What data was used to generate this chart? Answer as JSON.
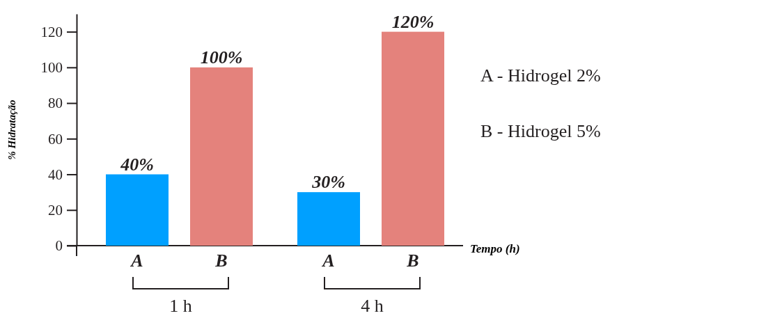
{
  "chart_data": {
    "type": "bar",
    "ylabel": "% Hidratação",
    "xlabel": "Tempo (h)",
    "categories": [
      "A",
      "B",
      "A",
      "B"
    ],
    "values": [
      40,
      100,
      30,
      120
    ],
    "colors": [
      "#00a0ff",
      "#e4827c",
      "#00a0ff",
      "#e4827c"
    ],
    "value_labels": [
      "40%",
      "100%",
      "30%",
      "120%"
    ],
    "ylim": [
      0,
      130
    ],
    "yticks": [
      0,
      20,
      40,
      60,
      80,
      100,
      120
    ],
    "annotations": [
      "1 h",
      "4 h",
      "A - Hidrogel 2%",
      "B - Hidrogel 5%"
    ]
  }
}
